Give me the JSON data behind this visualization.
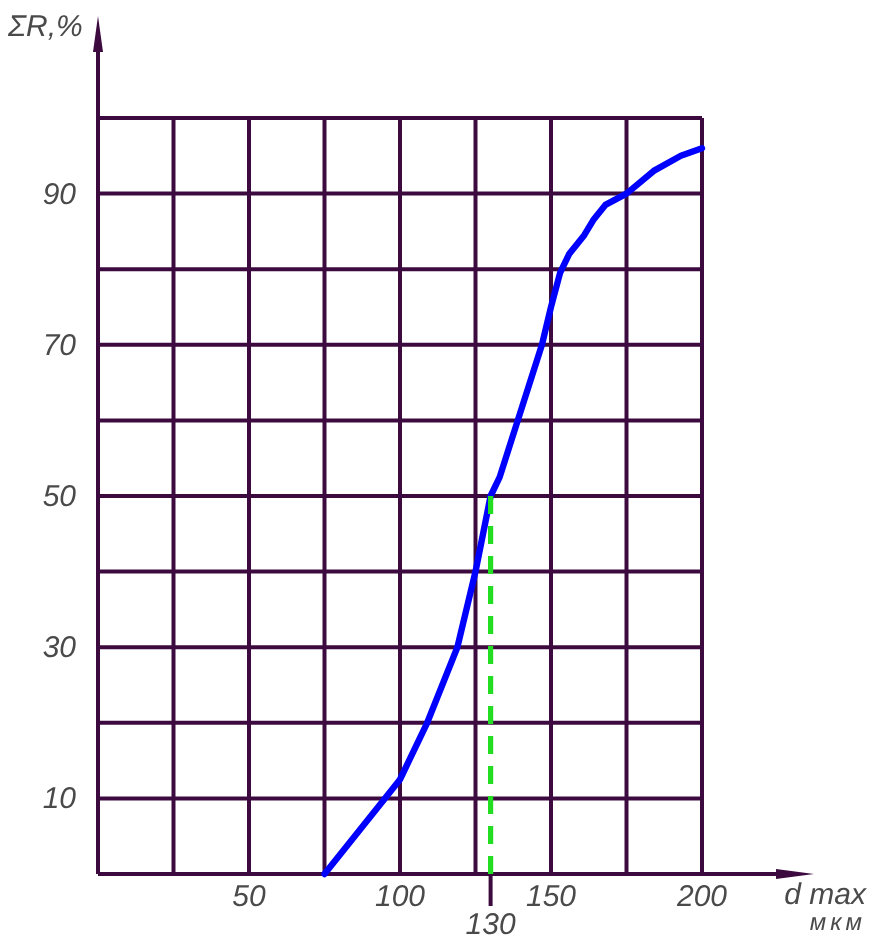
{
  "chart_data": {
    "type": "line",
    "xlabel": "d max\nмкм",
    "ylabel": "ΣR,%",
    "xlim": [
      0,
      200
    ],
    "ylim": [
      0,
      100
    ],
    "xticks": [
      {
        "value": 0,
        "label": null
      },
      {
        "value": 25,
        "label": null
      },
      50,
      {
        "value": 75,
        "label": null
      },
      100,
      {
        "value": 125,
        "label": null
      },
      150,
      {
        "value": 175,
        "label": null
      },
      200
    ],
    "yticks": [
      {
        "value": 0,
        "label": null
      },
      10,
      {
        "value": 20,
        "label": null
      },
      30,
      {
        "value": 40,
        "label": null
      },
      50,
      {
        "value": 60,
        "label": null
      },
      70,
      {
        "value": 80,
        "label": null
      },
      90,
      {
        "value": 100,
        "label": null
      }
    ],
    "grid": true,
    "series": [
      {
        "color": "#0000ff",
        "x": [
          75,
          95,
          100,
          109,
          119,
          125,
          130,
          133,
          139,
          147,
          150,
          153,
          156,
          161,
          164,
          168,
          175,
          184,
          193,
          200
        ],
        "values": [
          0,
          10,
          12.5,
          20,
          30,
          40,
          50,
          52.5,
          60,
          70,
          75,
          79.5,
          82,
          84.5,
          86.5,
          88.5,
          90,
          93,
          95,
          96
        ]
      },
      {
        "color": "#22dd22",
        "x": [
          130,
          130
        ],
        "values": [
          0,
          50
        ],
        "line_style": "dashed"
      }
    ],
    "annotations": [
      {
        "text": "130",
        "x": 130,
        "y": 0
      }
    ]
  }
}
